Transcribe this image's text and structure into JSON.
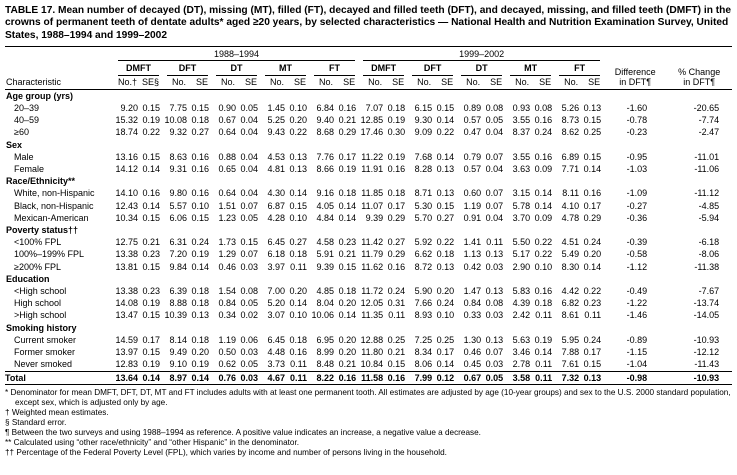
{
  "title": "TABLE 17. Mean number of decayed (DT), missing (MT), filled (FT), decayed and filled teeth (DFT), and decayed, missing, and filled teeth (DMFT) in the crowns of permanent teeth of dentate adults* aged ≥20 years, by selected characteristics — National Health and Nutrition Examination Survey, United States, 1988–1994 and 1999–2002",
  "table": {
    "characteristic_header": "Characteristic",
    "periods": [
      "1988–1994",
      "1999–2002"
    ],
    "measures": [
      "DMFT",
      "DFT",
      "DT",
      "MT",
      "FT"
    ],
    "subheaders_first": [
      "No.†",
      "SE§"
    ],
    "subheaders": [
      "No.",
      "SE"
    ],
    "difference_header": {
      "line1": "Difference",
      "line2": "in DFT¶"
    },
    "pct_change_header": {
      "line1": "% Change",
      "line2": "in DFT¶"
    },
    "sections": [
      {
        "label": "Age group (yrs)",
        "rows": [
          {
            "label": "20–39",
            "values": [
              "9.20",
              "0.15",
              "7.75",
              "0.15",
              "0.90",
              "0.05",
              "1.45",
              "0.10",
              "6.84",
              "0.16",
              "7.07",
              "0.18",
              "6.15",
              "0.15",
              "0.89",
              "0.08",
              "0.93",
              "0.08",
              "5.26",
              "0.13"
            ],
            "difference": "-1.60",
            "pct_change": "-20.65"
          },
          {
            "label": "40–59",
            "values": [
              "15.32",
              "0.19",
              "10.08",
              "0.18",
              "0.67",
              "0.04",
              "5.25",
              "0.20",
              "9.40",
              "0.21",
              "12.85",
              "0.19",
              "9.30",
              "0.14",
              "0.57",
              "0.05",
              "3.55",
              "0.16",
              "8.73",
              "0.15"
            ],
            "difference": "-0.78",
            "pct_change": "-7.74"
          },
          {
            "label": "≥60",
            "values": [
              "18.74",
              "0.22",
              "9.32",
              "0.27",
              "0.64",
              "0.04",
              "9.43",
              "0.22",
              "8.68",
              "0.29",
              "17.46",
              "0.30",
              "9.09",
              "0.22",
              "0.47",
              "0.04",
              "8.37",
              "0.24",
              "8.62",
              "0.25"
            ],
            "difference": "-0.23",
            "pct_change": "-2.47"
          }
        ]
      },
      {
        "label": "Sex",
        "rows": [
          {
            "label": "Male",
            "values": [
              "13.16",
              "0.15",
              "8.63",
              "0.16",
              "0.88",
              "0.04",
              "4.53",
              "0.13",
              "7.76",
              "0.17",
              "11.22",
              "0.19",
              "7.68",
              "0.14",
              "0.79",
              "0.07",
              "3.55",
              "0.16",
              "6.89",
              "0.15"
            ],
            "difference": "-0.95",
            "pct_change": "-11.01"
          },
          {
            "label": "Female",
            "values": [
              "14.12",
              "0.14",
              "9.31",
              "0.16",
              "0.65",
              "0.04",
              "4.81",
              "0.13",
              "8.66",
              "0.19",
              "11.91",
              "0.16",
              "8.28",
              "0.13",
              "0.57",
              "0.04",
              "3.63",
              "0.09",
              "7.71",
              "0.14"
            ],
            "difference": "-1.03",
            "pct_change": "-11.06"
          }
        ]
      },
      {
        "label": "Race/Ethnicity**",
        "rows": [
          {
            "label": "White, non-Hispanic",
            "values": [
              "14.10",
              "0.16",
              "9.80",
              "0.16",
              "0.64",
              "0.04",
              "4.30",
              "0.14",
              "9.16",
              "0.18",
              "11.85",
              "0.18",
              "8.71",
              "0.13",
              "0.60",
              "0.07",
              "3.15",
              "0.14",
              "8.11",
              "0.16"
            ],
            "difference": "-1.09",
            "pct_change": "-11.12"
          },
          {
            "label": "Black, non-Hispanic",
            "values": [
              "12.43",
              "0.14",
              "5.57",
              "0.10",
              "1.51",
              "0.07",
              "6.87",
              "0.15",
              "4.05",
              "0.14",
              "11.07",
              "0.17",
              "5.30",
              "0.15",
              "1.19",
              "0.07",
              "5.78",
              "0.14",
              "4.10",
              "0.17"
            ],
            "difference": "-0.27",
            "pct_change": "-4.85"
          },
          {
            "label": "Mexican-American",
            "values": [
              "10.34",
              "0.15",
              "6.06",
              "0.15",
              "1.23",
              "0.05",
              "4.28",
              "0.10",
              "4.84",
              "0.14",
              "9.39",
              "0.29",
              "5.70",
              "0.27",
              "0.91",
              "0.04",
              "3.70",
              "0.09",
              "4.78",
              "0.29"
            ],
            "difference": "-0.36",
            "pct_change": "-5.94"
          }
        ]
      },
      {
        "label": "Poverty status††",
        "rows": [
          {
            "label": "<100% FPL",
            "values": [
              "12.75",
              "0.21",
              "6.31",
              "0.24",
              "1.73",
              "0.15",
              "6.45",
              "0.27",
              "4.58",
              "0.23",
              "11.42",
              "0.27",
              "5.92",
              "0.22",
              "1.41",
              "0.11",
              "5.50",
              "0.22",
              "4.51",
              "0.24"
            ],
            "difference": "-0.39",
            "pct_change": "-6.18"
          },
          {
            "label": "100%–199% FPL",
            "values": [
              "13.38",
              "0.23",
              "7.20",
              "0.19",
              "1.29",
              "0.07",
              "6.18",
              "0.18",
              "5.91",
              "0.21",
              "11.79",
              "0.29",
              "6.62",
              "0.18",
              "1.13",
              "0.13",
              "5.17",
              "0.22",
              "5.49",
              "0.20"
            ],
            "difference": "-0.58",
            "pct_change": "-8.06"
          },
          {
            "label": "≥200% FPL",
            "values": [
              "13.81",
              "0.15",
              "9.84",
              "0.14",
              "0.46",
              "0.03",
              "3.97",
              "0.11",
              "9.39",
              "0.15",
              "11.62",
              "0.16",
              "8.72",
              "0.13",
              "0.42",
              "0.03",
              "2.90",
              "0.10",
              "8.30",
              "0.14"
            ],
            "difference": "-1.12",
            "pct_change": "-11.38"
          }
        ]
      },
      {
        "label": "Education",
        "rows": [
          {
            "label": "<High school",
            "values": [
              "13.38",
              "0.23",
              "6.39",
              "0.18",
              "1.54",
              "0.08",
              "7.00",
              "0.20",
              "4.85",
              "0.18",
              "11.72",
              "0.24",
              "5.90",
              "0.20",
              "1.47",
              "0.13",
              "5.83",
              "0.16",
              "4.42",
              "0.22"
            ],
            "difference": "-0.49",
            "pct_change": "-7.67"
          },
          {
            "label": "High school",
            "values": [
              "14.08",
              "0.19",
              "8.88",
              "0.18",
              "0.84",
              "0.05",
              "5.20",
              "0.14",
              "8.04",
              "0.20",
              "12.05",
              "0.31",
              "7.66",
              "0.24",
              "0.84",
              "0.08",
              "4.39",
              "0.18",
              "6.82",
              "0.23"
            ],
            "difference": "-1.22",
            "pct_change": "-13.74"
          },
          {
            "label": ">High school",
            "values": [
              "13.47",
              "0.15",
              "10.39",
              "0.13",
              "0.34",
              "0.02",
              "3.07",
              "0.10",
              "10.06",
              "0.14",
              "11.35",
              "0.11",
              "8.93",
              "0.10",
              "0.33",
              "0.03",
              "2.42",
              "0.11",
              "8.61",
              "0.11"
            ],
            "difference": "-1.46",
            "pct_change": "-14.05"
          }
        ]
      },
      {
        "label": "Smoking history",
        "rows": [
          {
            "label": "Current smoker",
            "values": [
              "14.59",
              "0.17",
              "8.14",
              "0.18",
              "1.19",
              "0.06",
              "6.45",
              "0.18",
              "6.95",
              "0.20",
              "12.88",
              "0.25",
              "7.25",
              "0.25",
              "1.30",
              "0.13",
              "5.63",
              "0.19",
              "5.95",
              "0.24"
            ],
            "difference": "-0.89",
            "pct_change": "-10.93"
          },
          {
            "label": "Former smoker",
            "values": [
              "13.97",
              "0.15",
              "9.49",
              "0.20",
              "0.50",
              "0.03",
              "4.48",
              "0.16",
              "8.99",
              "0.20",
              "11.80",
              "0.21",
              "8.34",
              "0.17",
              "0.46",
              "0.07",
              "3.46",
              "0.14",
              "7.88",
              "0.17"
            ],
            "difference": "-1.15",
            "pct_change": "-12.12"
          },
          {
            "label": "Never smoked",
            "values": [
              "12.83",
              "0.19",
              "9.10",
              "0.19",
              "0.62",
              "0.05",
              "3.73",
              "0.11",
              "8.48",
              "0.21",
              "10.84",
              "0.15",
              "8.06",
              "0.14",
              "0.45",
              "0.03",
              "2.78",
              "0.11",
              "7.61",
              "0.15"
            ],
            "difference": "-1.04",
            "pct_change": "-11.43"
          }
        ]
      }
    ],
    "total": {
      "label": "Total",
      "values": [
        "13.64",
        "0.14",
        "8.97",
        "0.14",
        "0.76",
        "0.03",
        "4.67",
        "0.11",
        "8.22",
        "0.16",
        "11.58",
        "0.16",
        "7.99",
        "0.12",
        "0.67",
        "0.05",
        "3.58",
        "0.11",
        "7.32",
        "0.13"
      ],
      "difference": "-0.98",
      "pct_change": "-10.93"
    }
  },
  "footnotes": [
    {
      "marker": "*",
      "text": "Denominator for mean DMFT, DFT, DT, MT and FT includes adults with at least one permanent tooth. All estimates are adjusted by age (10-year groups) and sex to the U.S. 2000 standard population, except sex, which is adjusted only by age."
    },
    {
      "marker": "†",
      "text": "Weighted mean estimates."
    },
    {
      "marker": "§",
      "text": "Standard error."
    },
    {
      "marker": "¶",
      "text": "Between the two surveys and using 1988–1994 as reference. A positive value indicates an increase, a negative value a decrease."
    },
    {
      "marker": "**",
      "text": "Calculated using “other race/ethnicity” and “other Hispanic” in the denominator."
    },
    {
      "marker": "††",
      "text": "Percentage of the Federal Poverty Level (FPL), which varies by income and number of persons living in the household."
    }
  ]
}
